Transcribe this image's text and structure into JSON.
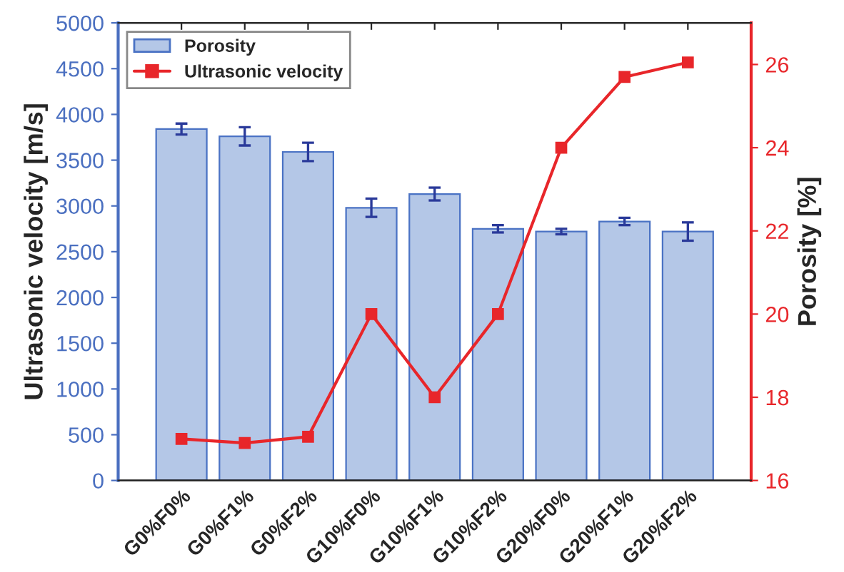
{
  "chart_data": {
    "type": "bar",
    "categories": [
      "G0%F0%",
      "G0%F1%",
      "G0%F2%",
      "G10%F0%",
      "G10%F1%",
      "G10%F2%",
      "G20%F0%",
      "G20%F1%",
      "G20%F2%"
    ],
    "ylabel": "Ultrasonic velocity [m/s]",
    "y2label": "Porosity [%]",
    "series": [
      {
        "name": "Porosity",
        "color": "#b4c7e7",
        "values": [
          3840,
          3760,
          3590,
          2980,
          3130,
          2750,
          2720,
          2830,
          2720
        ],
        "errors": [
          60,
          100,
          100,
          100,
          70,
          40,
          30,
          40,
          100
        ]
      },
      {
        "name": "Ultrasonic velocity",
        "type": "line",
        "axis": "y2",
        "color": "#e8262a",
        "values": [
          17.0,
          16.9,
          17.05,
          20.0,
          18.0,
          20.0,
          24.0,
          25.7,
          26.05
        ]
      }
    ],
    "ylim": [
      0,
      5000
    ],
    "yticks": [
      0,
      500,
      1000,
      1500,
      2000,
      2500,
      3000,
      3500,
      4000,
      4500,
      5000
    ],
    "y2lim": [
      16,
      27
    ],
    "y2ticks": [
      16,
      18,
      20,
      22,
      24,
      26
    ],
    "marker": "square",
    "line_style": "solid",
    "grid": false,
    "legend": "top left"
  }
}
